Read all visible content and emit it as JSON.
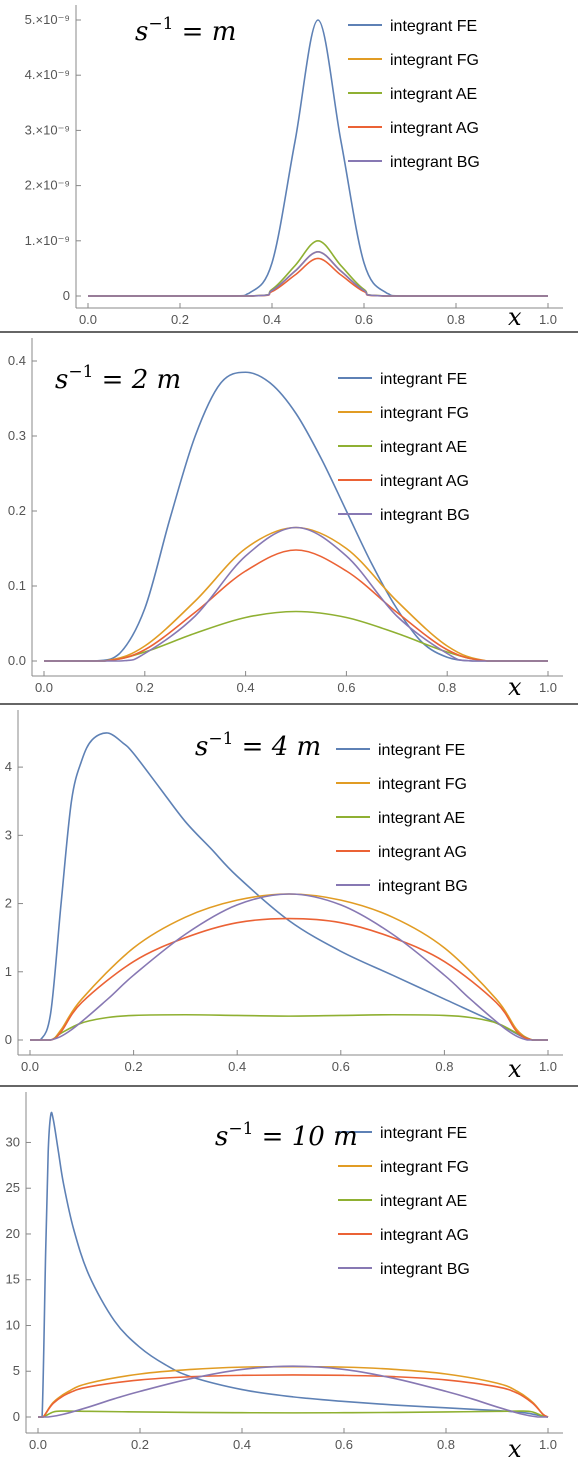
{
  "chart_data": [
    {
      "type": "line",
      "title": "s⁻¹ = m",
      "xlabel": "x",
      "ylabel": "",
      "xlim": [
        0,
        1
      ],
      "ylim": [
        0,
        5e-09
      ],
      "x_ticks": [
        "0.0",
        "0.2",
        "0.4",
        "0.6",
        "0.8",
        "1.0"
      ],
      "y_ticks": [
        {
          "label": "0",
          "value": 0
        },
        {
          "label": "1.×10⁻⁹",
          "value": 1e-09
        },
        {
          "label": "2.×10⁻⁹",
          "value": 2e-09
        },
        {
          "label": "3.×10⁻⁹",
          "value": 3e-09
        },
        {
          "label": "4.×10⁻⁹",
          "value": 4e-09
        },
        {
          "label": "5.×10⁻⁹",
          "value": 5e-09
        }
      ],
      "legend_position": "top-right",
      "series": [
        {
          "name": "integrant FE",
          "color": "#5E81B5",
          "x": [
            0,
            0.3,
            0.35,
            0.4,
            0.45,
            0.5,
            0.55,
            0.6,
            0.65,
            0.7,
            1.0
          ],
          "y": [
            0,
            0,
            5e-11,
            6e-10,
            2.8e-09,
            5e-09,
            2.8e-09,
            6e-10,
            5e-11,
            0,
            0
          ]
        },
        {
          "name": "integrant FG",
          "color": "#E19C24",
          "x": [
            0,
            0.35,
            0.4,
            0.45,
            0.5,
            0.55,
            0.6,
            0.65,
            1.0
          ],
          "y": [
            0,
            0,
            1e-10,
            4.5e-10,
            8e-10,
            4.5e-10,
            1e-10,
            0,
            0
          ]
        },
        {
          "name": "integrant AE",
          "color": "#8FB032",
          "x": [
            0,
            0.35,
            0.4,
            0.45,
            0.5,
            0.55,
            0.6,
            0.65,
            1.0
          ],
          "y": [
            0,
            0,
            1.2e-10,
            5.5e-10,
            1e-09,
            5.5e-10,
            1.2e-10,
            0,
            0
          ]
        },
        {
          "name": "integrant AG",
          "color": "#EB6235",
          "x": [
            0,
            0.35,
            0.4,
            0.45,
            0.5,
            0.55,
            0.6,
            0.65,
            1.0
          ],
          "y": [
            0,
            0,
            8e-11,
            3.8e-10,
            6.8e-10,
            3.8e-10,
            8e-11,
            0,
            0
          ]
        },
        {
          "name": "integrant BG",
          "color": "#8778B3",
          "x": [
            0,
            0.35,
            0.4,
            0.45,
            0.5,
            0.55,
            0.6,
            0.65,
            1.0
          ],
          "y": [
            0,
            0,
            1e-10,
            4.5e-10,
            8e-10,
            4.5e-10,
            1e-10,
            0,
            0
          ]
        }
      ]
    },
    {
      "type": "line",
      "title": "s⁻¹ = 2 m",
      "xlabel": "x",
      "ylabel": "",
      "xlim": [
        0,
        1
      ],
      "ylim": [
        0,
        0.4
      ],
      "x_ticks": [
        "0.0",
        "0.2",
        "0.4",
        "0.6",
        "0.8",
        "1.0"
      ],
      "y_ticks": [
        {
          "label": "0.0",
          "value": 0
        },
        {
          "label": "0.1",
          "value": 0.1
        },
        {
          "label": "0.2",
          "value": 0.2
        },
        {
          "label": "0.3",
          "value": 0.3
        },
        {
          "label": "0.4",
          "value": 0.4
        }
      ],
      "legend_position": "top-right",
      "series": [
        {
          "name": "integrant FE",
          "color": "#5E81B5",
          "x": [
            0,
            0.1,
            0.15,
            0.2,
            0.25,
            0.3,
            0.35,
            0.4,
            0.45,
            0.5,
            0.55,
            0.6,
            0.65,
            0.7,
            0.75,
            0.8,
            0.85,
            0.9,
            1.0
          ],
          "y": [
            0,
            0,
            0.01,
            0.07,
            0.19,
            0.3,
            0.37,
            0.385,
            0.37,
            0.33,
            0.27,
            0.2,
            0.13,
            0.07,
            0.025,
            0.005,
            0,
            0,
            0
          ]
        },
        {
          "name": "integrant FG",
          "color": "#E19C24",
          "x": [
            0,
            0.12,
            0.2,
            0.3,
            0.4,
            0.5,
            0.6,
            0.7,
            0.8,
            0.88,
            1.0
          ],
          "y": [
            0,
            0,
            0.02,
            0.08,
            0.15,
            0.178,
            0.15,
            0.08,
            0.02,
            0,
            0
          ]
        },
        {
          "name": "integrant AE",
          "color": "#8FB032",
          "x": [
            0,
            0.12,
            0.2,
            0.3,
            0.4,
            0.5,
            0.6,
            0.7,
            0.8,
            0.88,
            1.0
          ],
          "y": [
            0,
            0,
            0.012,
            0.037,
            0.058,
            0.066,
            0.058,
            0.037,
            0.012,
            0,
            0
          ]
        },
        {
          "name": "integrant AG",
          "color": "#EB6235",
          "x": [
            0,
            0.12,
            0.2,
            0.3,
            0.4,
            0.5,
            0.6,
            0.7,
            0.8,
            0.88,
            1.0
          ],
          "y": [
            0,
            0,
            0.015,
            0.065,
            0.12,
            0.148,
            0.12,
            0.065,
            0.015,
            0,
            0
          ]
        },
        {
          "name": "integrant BG",
          "color": "#8778B3",
          "x": [
            0,
            0.15,
            0.2,
            0.3,
            0.4,
            0.5,
            0.6,
            0.7,
            0.8,
            0.85,
            1.0
          ],
          "y": [
            0,
            0,
            0.01,
            0.06,
            0.14,
            0.178,
            0.14,
            0.06,
            0.01,
            0,
            0
          ]
        }
      ]
    },
    {
      "type": "line",
      "title": "s⁻¹ = 4 m",
      "xlabel": "x",
      "ylabel": "",
      "xlim": [
        0,
        1
      ],
      "ylim": [
        0,
        4.5
      ],
      "x_ticks": [
        "0.0",
        "0.2",
        "0.4",
        "0.6",
        "0.8",
        "1.0"
      ],
      "y_ticks": [
        {
          "label": "0",
          "value": 0
        },
        {
          "label": "1",
          "value": 1
        },
        {
          "label": "2",
          "value": 2
        },
        {
          "label": "3",
          "value": 3
        },
        {
          "label": "4",
          "value": 4
        }
      ],
      "legend_position": "top-right",
      "series": [
        {
          "name": "integrant FE",
          "color": "#5E81B5",
          "x": [
            0,
            0.02,
            0.04,
            0.06,
            0.08,
            0.1,
            0.12,
            0.15,
            0.18,
            0.2,
            0.25,
            0.3,
            0.35,
            0.4,
            0.5,
            0.6,
            0.7,
            0.8,
            0.9,
            0.95,
            0.97,
            1.0
          ],
          "y": [
            0,
            0,
            0.4,
            2.0,
            3.5,
            4.1,
            4.4,
            4.5,
            4.35,
            4.2,
            3.7,
            3.2,
            2.8,
            2.4,
            1.75,
            1.3,
            0.95,
            0.6,
            0.25,
            0.05,
            0,
            0
          ]
        },
        {
          "name": "integrant FG",
          "color": "#E19C24",
          "x": [
            0,
            0.04,
            0.06,
            0.1,
            0.2,
            0.3,
            0.4,
            0.5,
            0.6,
            0.7,
            0.8,
            0.9,
            0.94,
            0.97,
            1.0
          ],
          "y": [
            0,
            0,
            0.15,
            0.6,
            1.35,
            1.8,
            2.05,
            2.14,
            2.05,
            1.8,
            1.35,
            0.6,
            0.15,
            0,
            0
          ]
        },
        {
          "name": "integrant AE",
          "color": "#8FB032",
          "x": [
            0,
            0.04,
            0.06,
            0.1,
            0.15,
            0.2,
            0.3,
            0.4,
            0.5,
            0.6,
            0.7,
            0.8,
            0.85,
            0.9,
            0.94,
            0.97,
            1.0
          ],
          "y": [
            0,
            0,
            0.1,
            0.25,
            0.33,
            0.36,
            0.37,
            0.36,
            0.35,
            0.36,
            0.37,
            0.36,
            0.33,
            0.25,
            0.1,
            0,
            0
          ]
        },
        {
          "name": "integrant AG",
          "color": "#EB6235",
          "x": [
            0,
            0.04,
            0.06,
            0.1,
            0.2,
            0.3,
            0.4,
            0.5,
            0.6,
            0.7,
            0.8,
            0.9,
            0.94,
            0.97,
            1.0
          ],
          "y": [
            0,
            0,
            0.12,
            0.55,
            1.15,
            1.5,
            1.72,
            1.78,
            1.72,
            1.5,
            1.15,
            0.55,
            0.12,
            0,
            0
          ]
        },
        {
          "name": "integrant BG",
          "color": "#8778B3",
          "x": [
            0,
            0.04,
            0.08,
            0.15,
            0.2,
            0.3,
            0.4,
            0.5,
            0.6,
            0.7,
            0.8,
            0.85,
            0.92,
            0.96,
            1.0
          ],
          "y": [
            0,
            0,
            0.15,
            0.6,
            0.95,
            1.55,
            1.98,
            2.14,
            1.98,
            1.55,
            0.95,
            0.6,
            0.15,
            0,
            0
          ]
        }
      ]
    },
    {
      "type": "line",
      "title": "s⁻¹ = 10 m",
      "xlabel": "x",
      "ylabel": "",
      "xlim": [
        0,
        1
      ],
      "ylim": [
        0,
        33
      ],
      "x_ticks": [
        "0.0",
        "0.2",
        "0.4",
        "0.6",
        "0.8",
        "1.0"
      ],
      "y_ticks": [
        {
          "label": "0",
          "value": 0
        },
        {
          "label": "5",
          "value": 5
        },
        {
          "label": "10",
          "value": 10
        },
        {
          "label": "15",
          "value": 15
        },
        {
          "label": "20",
          "value": 20
        },
        {
          "label": "25",
          "value": 25
        },
        {
          "label": "30",
          "value": 30
        }
      ],
      "legend_position": "top-right",
      "series": [
        {
          "name": "integrant FE",
          "color": "#5E81B5",
          "x": [
            0,
            0.008,
            0.015,
            0.02,
            0.025,
            0.03,
            0.04,
            0.05,
            0.07,
            0.1,
            0.15,
            0.2,
            0.25,
            0.3,
            0.4,
            0.5,
            0.6,
            0.7,
            0.8,
            0.9,
            0.95,
            0.98,
            1.0
          ],
          "y": [
            0,
            0,
            18,
            29,
            33,
            32.5,
            29,
            25.5,
            20.5,
            15.5,
            10.5,
            7.6,
            5.7,
            4.4,
            3.0,
            2.2,
            1.7,
            1.3,
            1.0,
            0.7,
            0.5,
            0.2,
            0
          ]
        },
        {
          "name": "integrant FG",
          "color": "#E19C24",
          "x": [
            0,
            0.01,
            0.03,
            0.06,
            0.1,
            0.2,
            0.3,
            0.4,
            0.5,
            0.6,
            0.7,
            0.8,
            0.9,
            0.94,
            0.97,
            0.99,
            1.0
          ],
          "y": [
            0,
            0,
            1.6,
            2.8,
            3.7,
            4.7,
            5.2,
            5.45,
            5.5,
            5.45,
            5.2,
            4.7,
            3.7,
            2.8,
            1.6,
            0.3,
            0
          ]
        },
        {
          "name": "integrant AE",
          "color": "#8FB032",
          "x": [
            0,
            0.01,
            0.03,
            0.05,
            0.1,
            0.2,
            0.3,
            0.4,
            0.5,
            0.6,
            0.7,
            0.8,
            0.9,
            0.95,
            0.97,
            0.99,
            1.0
          ],
          "y": [
            0,
            0,
            0.55,
            0.65,
            0.62,
            0.55,
            0.5,
            0.47,
            0.45,
            0.47,
            0.5,
            0.55,
            0.62,
            0.65,
            0.55,
            0.1,
            0
          ]
        },
        {
          "name": "integrant AG",
          "color": "#EB6235",
          "x": [
            0,
            0.01,
            0.03,
            0.06,
            0.1,
            0.2,
            0.3,
            0.4,
            0.5,
            0.6,
            0.7,
            0.8,
            0.9,
            0.94,
            0.97,
            0.99,
            1.0
          ],
          "y": [
            0,
            0,
            1.5,
            2.6,
            3.3,
            4.05,
            4.4,
            4.55,
            4.6,
            4.55,
            4.4,
            4.05,
            3.3,
            2.6,
            1.5,
            0.3,
            0
          ]
        },
        {
          "name": "integrant BG",
          "color": "#8778B3",
          "x": [
            0,
            0.02,
            0.05,
            0.1,
            0.15,
            0.2,
            0.3,
            0.4,
            0.5,
            0.6,
            0.7,
            0.8,
            0.85,
            0.9,
            0.95,
            0.98,
            1.0
          ],
          "y": [
            0,
            0,
            0.3,
            1.1,
            2.0,
            2.8,
            4.2,
            5.2,
            5.55,
            5.2,
            4.2,
            2.8,
            2.0,
            1.1,
            0.3,
            0,
            0
          ]
        }
      ]
    }
  ]
}
